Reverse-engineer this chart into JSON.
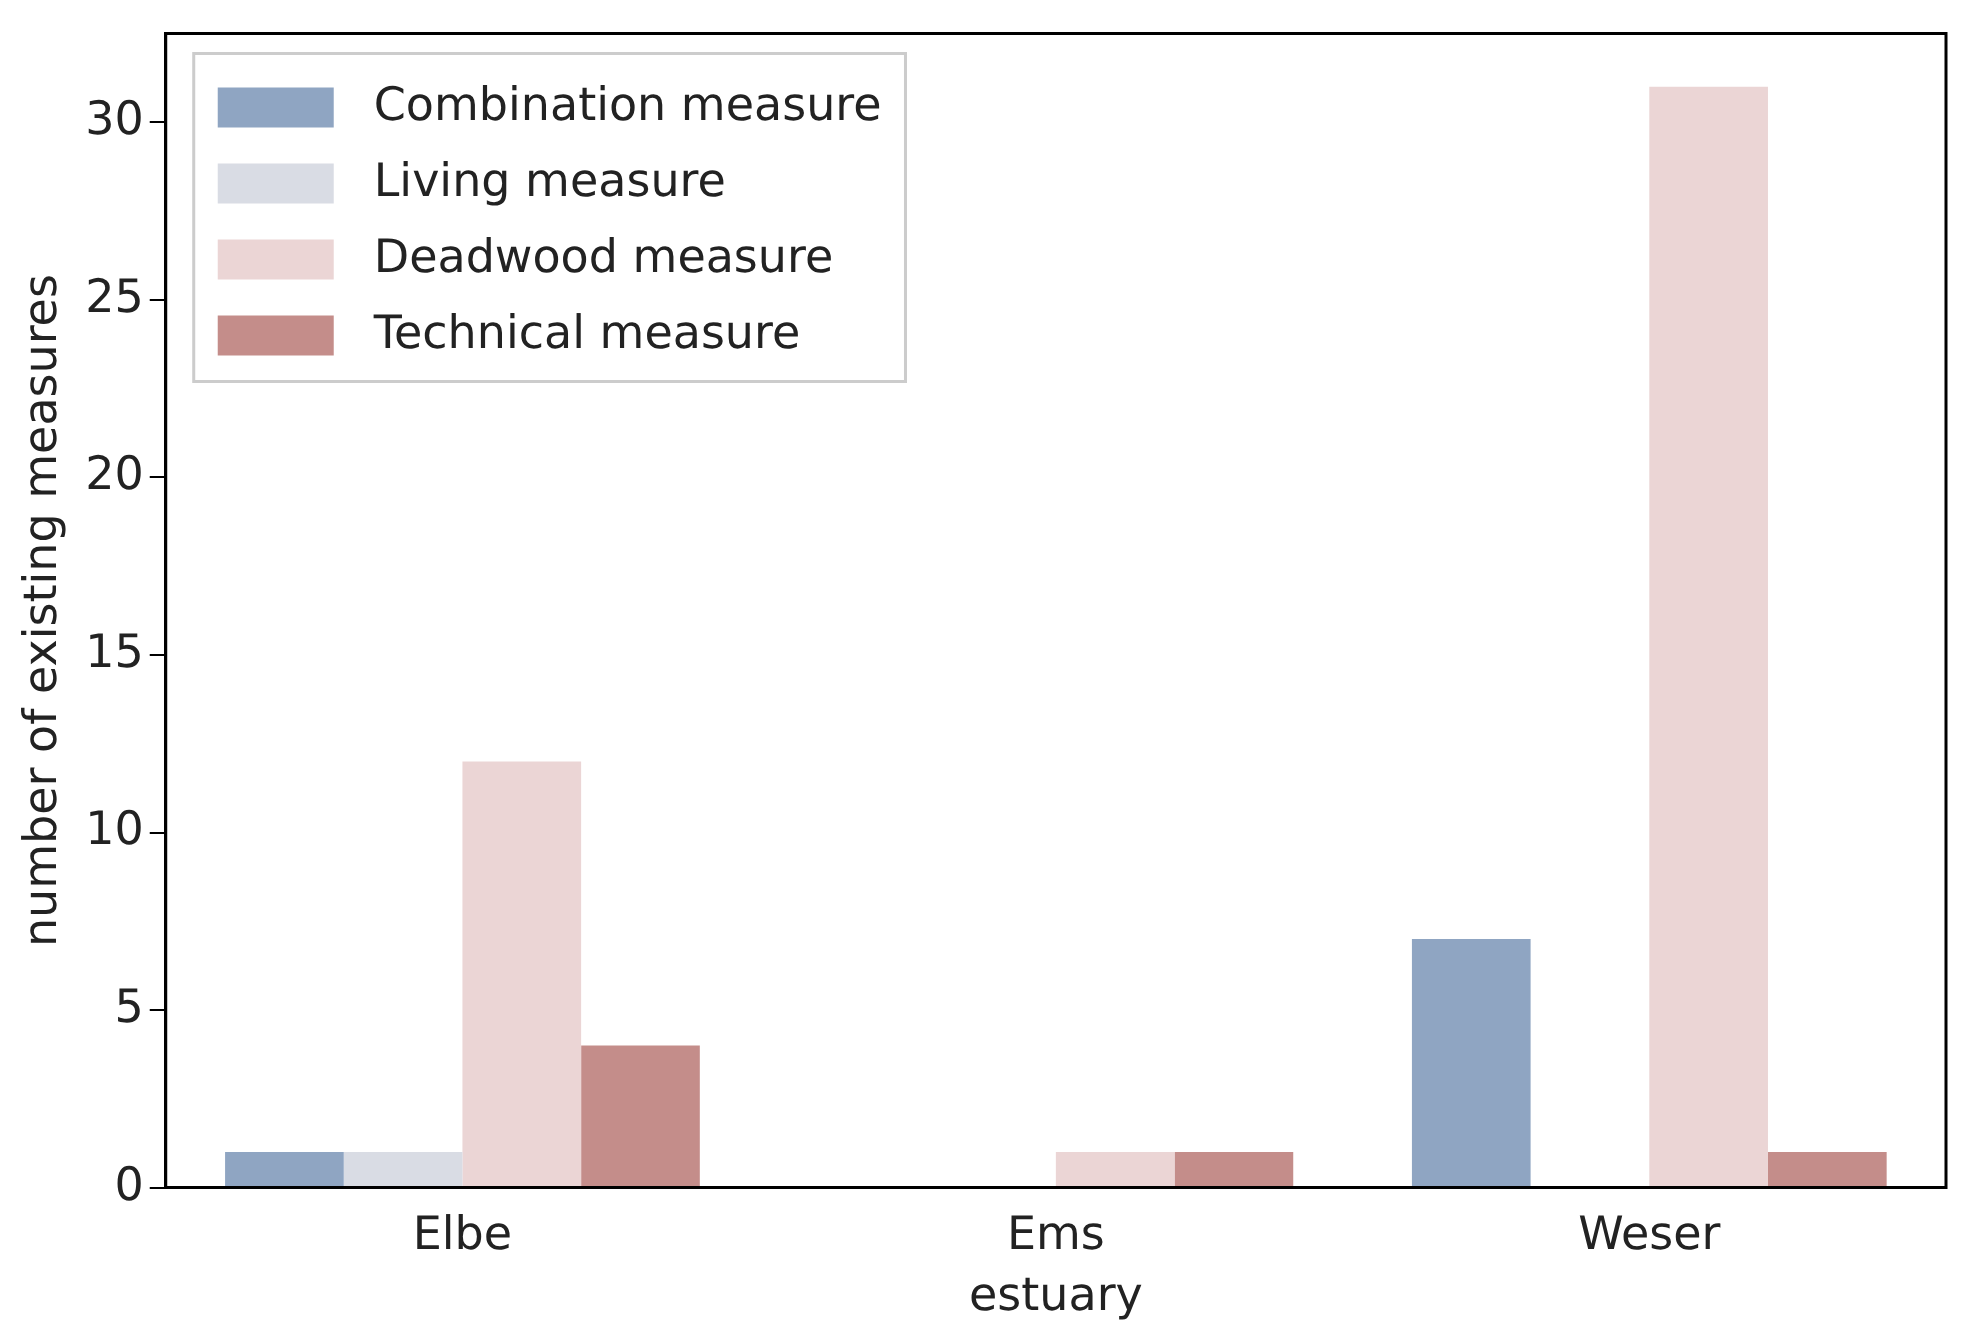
{
  "chart_data": {
    "type": "bar",
    "xlabel": "estuary",
    "ylabel": "number of existing measures",
    "categories": [
      "Elbe",
      "Ems",
      "Weser"
    ],
    "series": [
      {
        "name": "Combination measure",
        "color": "#8fa5c2",
        "values": [
          1,
          0,
          7
        ]
      },
      {
        "name": "Living measure",
        "color": "#d9dce4",
        "values": [
          1,
          0,
          0
        ]
      },
      {
        "name": "Deadwood measure",
        "color": "#ebd5d5",
        "values": [
          12,
          1,
          31
        ]
      },
      {
        "name": "Technical measure",
        "color": "#c48d8a",
        "values": [
          4,
          1,
          1
        ]
      }
    ],
    "ylim": [
      0,
      32.5
    ],
    "yticks": [
      0,
      5,
      10,
      15,
      20,
      25,
      30
    ],
    "grid": false,
    "legend": "top left"
  }
}
